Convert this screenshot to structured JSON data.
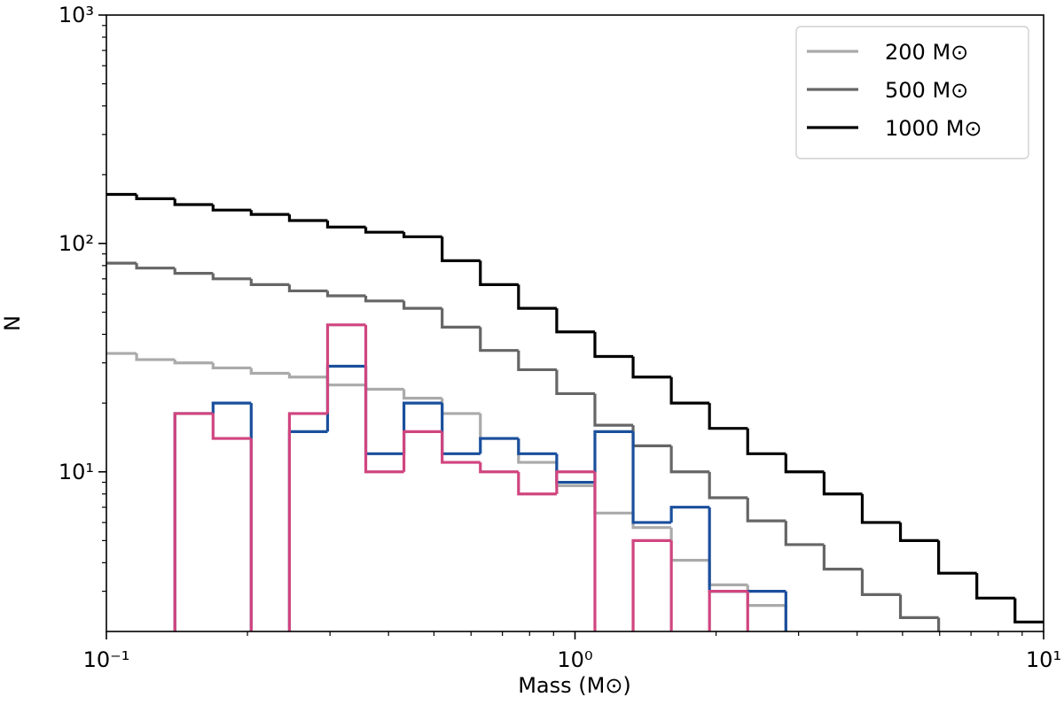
{
  "chart_data": {
    "type": "histogram",
    "xlabel": "Mass (M⊙)",
    "ylabel": "N",
    "xscale": "log",
    "yscale": "log",
    "xlim": [
      0.1,
      10
    ],
    "ylim": [
      2,
      1000
    ],
    "xticks": [
      {
        "value": 0.1,
        "label": "10⁻¹"
      },
      {
        "value": 1,
        "label": "10⁰"
      },
      {
        "value": 10,
        "label": "10¹"
      }
    ],
    "yticks": [
      {
        "value": 10,
        "label": "10¹"
      },
      {
        "value": 100,
        "label": "10²"
      },
      {
        "value": 1000,
        "label": "10³"
      }
    ],
    "xminorticks": [
      0.2,
      0.3,
      0.4,
      0.5,
      0.6,
      0.7,
      0.8,
      0.9,
      2,
      3,
      4,
      5,
      6,
      7,
      8,
      9
    ],
    "yminorticks": [
      3,
      4,
      5,
      6,
      7,
      8,
      9,
      20,
      30,
      40,
      50,
      60,
      70,
      80,
      90,
      200,
      300,
      400,
      500,
      600,
      700,
      800,
      900
    ],
    "legend": "upper right",
    "bins": [
      0.0962,
      0.116,
      0.14,
      0.1689,
      0.2037,
      0.2458,
      0.2965,
      0.3577,
      0.4315,
      0.5206,
      0.6281,
      0.7577,
      0.9141,
      1.1028,
      1.3305,
      1.6052,
      1.9364,
      2.3363,
      2.8184,
      3.4004,
      4.102,
      4.9489,
      5.9704,
      7.2028,
      8.6896,
      10.483
    ],
    "series": [
      {
        "name": "200 M⊙",
        "color": "#aaaaaa",
        "values": [
          33,
          31,
          30,
          28.5,
          27,
          26,
          24,
          23,
          21,
          18,
          14,
          11,
          8.7,
          6.6,
          5.7,
          4.1,
          3.2,
          2.6,
          0,
          0,
          0,
          0,
          0,
          0,
          0
        ]
      },
      {
        "name": "500 M⊙",
        "color": "#666666",
        "values": [
          82,
          78,
          74,
          70,
          66,
          62,
          59,
          56,
          52,
          43,
          34,
          28,
          22,
          16,
          13,
          10,
          7.7,
          6.1,
          4.8,
          3.75,
          2.9,
          2.3,
          0,
          0,
          0
        ]
      },
      {
        "name": "1000 M⊙",
        "color": "#000000",
        "values": [
          164,
          157,
          148,
          140,
          134,
          126,
          118,
          112,
          107,
          84,
          66,
          52,
          41,
          32,
          26,
          20,
          15.5,
          12,
          10,
          8,
          6,
          5,
          3.6,
          2.8,
          2.2
        ]
      },
      {
        "color": "#1a4f9c",
        "values": [
          0,
          0,
          18,
          20,
          0,
          15,
          29,
          12,
          20,
          12,
          14,
          12,
          9,
          15,
          6,
          7,
          3,
          3,
          0,
          0,
          0,
          0,
          0,
          0,
          0
        ]
      },
      {
        "color": "#d0457f",
        "values": [
          0,
          0,
          18,
          14,
          0,
          18,
          44,
          10,
          15,
          11,
          10,
          8,
          10,
          0,
          5,
          0,
          3,
          2,
          0,
          0,
          0,
          0,
          0,
          0,
          0
        ]
      }
    ]
  }
}
